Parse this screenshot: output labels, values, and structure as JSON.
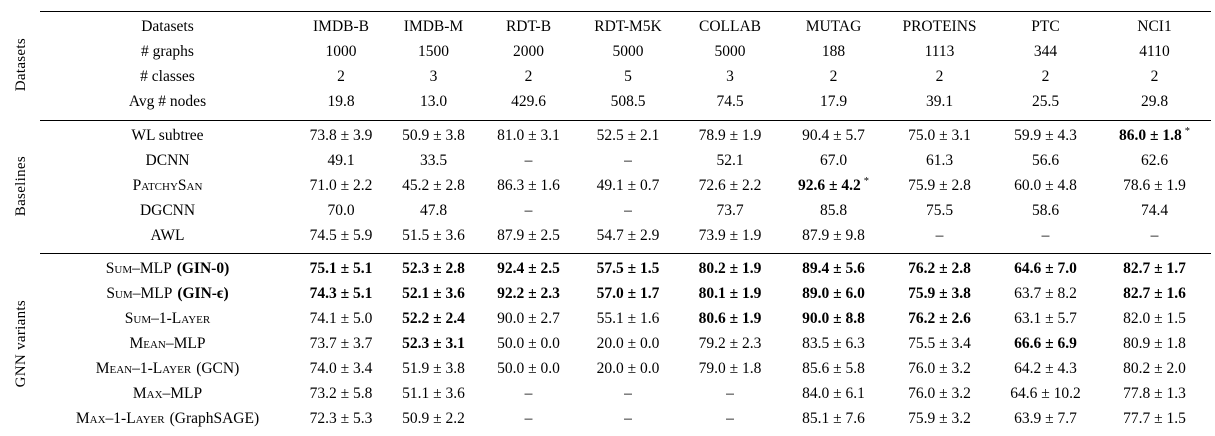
{
  "table": {
    "star_marker": "*",
    "sections": [
      {
        "group": "Datasets",
        "rows": [
          {
            "label": "Datasets",
            "values": [
              "IMDB-B",
              "IMDB-M",
              "RDT-B",
              "RDT-M5K",
              "COLLAB",
              "MUTAG",
              "PROTEINS",
              "PTC",
              "NCI1"
            ]
          },
          {
            "label": "# graphs",
            "values": [
              "1000",
              "1500",
              "2000",
              "5000",
              "5000",
              "188",
              "1113",
              "344",
              "4110"
            ]
          },
          {
            "label": "# classes",
            "values": [
              "2",
              "3",
              "2",
              "5",
              "3",
              "2",
              "2",
              "2",
              "2"
            ]
          },
          {
            "label": "Avg # nodes",
            "values": [
              "19.8",
              "13.0",
              "429.6",
              "508.5",
              "74.5",
              "17.9",
              "39.1",
              "25.5",
              "29.8"
            ]
          }
        ]
      },
      {
        "group": "Baselines",
        "rows": [
          {
            "label": "WL subtree",
            "values": [
              "73.8 ± 3.9",
              "50.9 ± 3.8",
              "81.0 ± 3.1",
              "52.5 ± 2.1",
              "78.9 ± 1.9",
              "90.4 ± 5.7",
              "75.0 ± 3.1",
              "59.9 ± 4.3",
              "86.0 ± 1.8"
            ],
            "bold": [
              8
            ],
            "star": [
              8
            ]
          },
          {
            "label": "DCNN",
            "values": [
              "49.1",
              "33.5",
              "–",
              "–",
              "52.1",
              "67.0",
              "61.3",
              "56.6",
              "62.6"
            ]
          },
          {
            "label": "PatchySan",
            "smallcaps": true,
            "values": [
              "71.0 ± 2.2",
              "45.2 ± 2.8",
              "86.3 ± 1.6",
              "49.1 ± 0.7",
              "72.6 ± 2.2",
              "92.6 ± 4.2",
              "75.9 ± 2.8",
              "60.0 ± 4.8",
              "78.6 ± 1.9"
            ],
            "bold": [
              5
            ],
            "star": [
              5
            ]
          },
          {
            "label": "DGCNN",
            "values": [
              "70.0",
              "47.8",
              "–",
              "–",
              "73.7",
              "85.8",
              "75.5",
              "58.6",
              "74.4"
            ]
          },
          {
            "label": "AWL",
            "values": [
              "74.5 ± 5.9",
              "51.5 ± 3.6",
              "87.9 ± 2.5",
              "54.7 ± 2.9",
              "73.9 ± 1.9",
              "87.9 ± 9.8",
              "–",
              "–",
              "–"
            ]
          }
        ]
      },
      {
        "group": "GNN variants",
        "rows": [
          {
            "label": "Sum–MLP",
            "smallcaps": true,
            "suffix": "(GIN-0)",
            "suffix_bold": true,
            "values": [
              "75.1 ± 5.1",
              "52.3 ± 2.8",
              "92.4 ± 2.5",
              "57.5 ± 1.5",
              "80.2 ± 1.9",
              "89.4 ± 5.6",
              "76.2 ± 2.8",
              "64.6 ± 7.0",
              "82.7 ± 1.7"
            ],
            "bold": [
              0,
              1,
              2,
              3,
              4,
              5,
              6,
              7,
              8
            ]
          },
          {
            "label": "Sum–MLP",
            "smallcaps": true,
            "suffix": "(GIN-ϵ)",
            "suffix_bold": true,
            "values": [
              "74.3 ± 5.1",
              "52.1 ± 3.6",
              "92.2 ± 2.3",
              "57.0 ± 1.7",
              "80.1 ± 1.9",
              "89.0 ± 6.0",
              "75.9 ± 3.8",
              "63.7 ± 8.2",
              "82.7 ± 1.6"
            ],
            "bold": [
              0,
              1,
              2,
              3,
              4,
              5,
              6,
              8
            ]
          },
          {
            "label": "Sum–1-Layer",
            "smallcaps": true,
            "values": [
              "74.1 ± 5.0",
              "52.2 ± 2.4",
              "90.0 ± 2.7",
              "55.1 ± 1.6",
              "80.6 ± 1.9",
              "90.0 ± 8.8",
              "76.2 ± 2.6",
              "63.1 ± 5.7",
              "82.0 ± 1.5"
            ],
            "bold": [
              1,
              4,
              5,
              6
            ]
          },
          {
            "label": "Mean–MLP",
            "smallcaps": true,
            "values": [
              "73.7 ± 3.7",
              "52.3 ± 3.1",
              "50.0 ± 0.0",
              "20.0 ± 0.0",
              "79.2 ± 2.3",
              "83.5 ± 6.3",
              "75.5 ± 3.4",
              "66.6 ± 6.9",
              "80.9 ± 1.8"
            ],
            "bold": [
              1,
              7
            ]
          },
          {
            "label": "Mean–1-Layer",
            "smallcaps": true,
            "suffix": "(GCN)",
            "values": [
              "74.0 ± 3.4",
              "51.9 ± 3.8",
              "50.0 ± 0.0",
              "20.0 ± 0.0",
              "79.0 ± 1.8",
              "85.6 ± 5.8",
              "76.0 ± 3.2",
              "64.2 ± 4.3",
              "80.2 ± 2.0"
            ]
          },
          {
            "label": "Max–MLP",
            "smallcaps": true,
            "values": [
              "73.2 ± 5.8",
              "51.1 ± 3.6",
              "–",
              "–",
              "–",
              "84.0 ± 6.1",
              "76.0 ± 3.2",
              "64.6 ± 10.2",
              "77.8 ± 1.3"
            ]
          },
          {
            "label": "Max–1-Layer",
            "smallcaps": true,
            "suffix": "(GraphSAGE)",
            "values": [
              "72.3 ± 5.3",
              "50.9 ± 2.2",
              "–",
              "–",
              "–",
              "85.1 ± 7.6",
              "75.9 ± 3.2",
              "63.9 ± 7.7",
              "77.7 ± 1.5"
            ]
          }
        ]
      }
    ]
  }
}
